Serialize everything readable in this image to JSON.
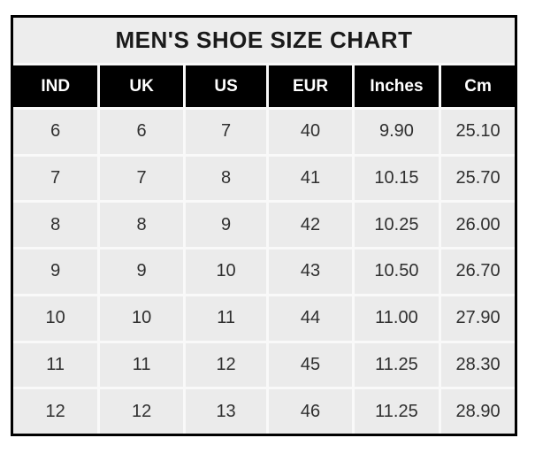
{
  "title": "MEN'S SHOE SIZE CHART",
  "chart_data": {
    "type": "table",
    "title": "MEN'S SHOE SIZE CHART",
    "columns": [
      "IND",
      "UK",
      "US",
      "EUR",
      "Inches",
      "Cm"
    ],
    "rows": [
      [
        "6",
        "6",
        "7",
        "40",
        "9.90",
        "25.10"
      ],
      [
        "7",
        "7",
        "8",
        "41",
        "10.15",
        "25.70"
      ],
      [
        "8",
        "8",
        "9",
        "42",
        "10.25",
        "26.00"
      ],
      [
        "9",
        "9",
        "10",
        "43",
        "10.50",
        "26.70"
      ],
      [
        "10",
        "10",
        "11",
        "44",
        "11.00",
        "27.90"
      ],
      [
        "11",
        "11",
        "12",
        "45",
        "11.25",
        "28.30"
      ],
      [
        "12",
        "12",
        "13",
        "46",
        "11.25",
        "28.90"
      ]
    ],
    "layout": {
      "grid": "white gridlines between gray cells",
      "header_style": "black background, white bold text",
      "outer_border": "thick black"
    }
  },
  "colors": {
    "border": "#000000",
    "title_bg": "#ededed",
    "header_bg": "#000000",
    "header_text": "#ffffff",
    "cell_bg": "#ebebeb",
    "cell_text": "#2f2f2f",
    "grid_line": "#f9f9f9",
    "page_bg": "#ffffff"
  }
}
